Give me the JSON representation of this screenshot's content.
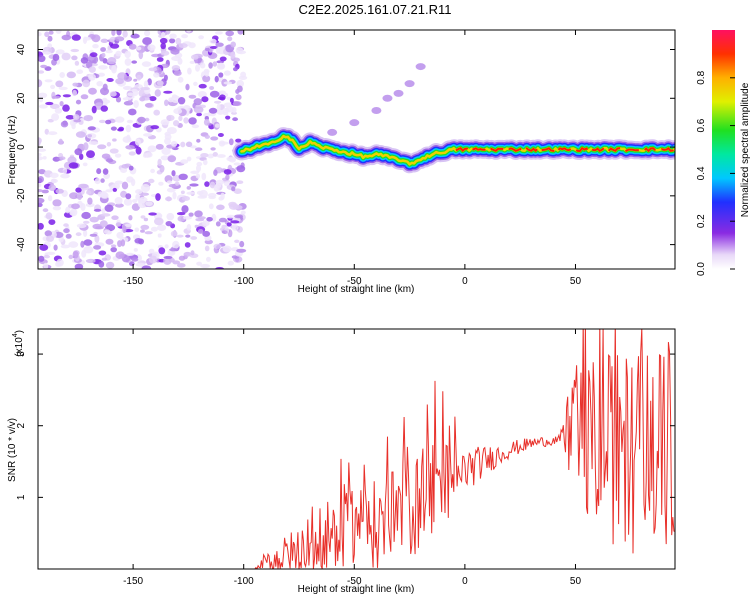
{
  "title": "C2E2.2025.161.07.21.R11",
  "colors": {
    "series_line": "#e8302a",
    "low_amplitude": "#7a1ee8",
    "axis": "#000000"
  },
  "chart_data": [
    {
      "type": "heatmap",
      "id": "spectrogram",
      "xlabel": "Height of straight line (km)",
      "ylabel": "Frequency (Hz)",
      "xlim": [
        -193,
        95
      ],
      "ylim": [
        -50,
        48
      ],
      "xticks": [
        -150,
        -100,
        -50,
        0,
        50
      ],
      "yticks": [
        -40,
        -20,
        0,
        20,
        40
      ],
      "ridge": [
        {
          "x": -101,
          "y": -2
        },
        {
          "x": -98,
          "y": -1
        },
        {
          "x": -95,
          "y": 0
        },
        {
          "x": -90,
          "y": 1
        },
        {
          "x": -85,
          "y": 2
        },
        {
          "x": -82,
          "y": 5
        },
        {
          "x": -78,
          "y": 3
        },
        {
          "x": -75,
          "y": -1
        },
        {
          "x": -70,
          "y": 2
        },
        {
          "x": -65,
          "y": 0
        },
        {
          "x": -60,
          "y": -1
        },
        {
          "x": -55,
          "y": -2
        },
        {
          "x": -50,
          "y": -3
        },
        {
          "x": -45,
          "y": -4
        },
        {
          "x": -40,
          "y": -3
        },
        {
          "x": -35,
          "y": -4
        },
        {
          "x": -30,
          "y": -5
        },
        {
          "x": -25,
          "y": -7
        },
        {
          "x": -20,
          "y": -5
        },
        {
          "x": -15,
          "y": -3
        },
        {
          "x": -10,
          "y": -2
        },
        {
          "x": -5,
          "y": -1
        },
        {
          "x": 0,
          "y": -1
        },
        {
          "x": 10,
          "y": -1
        },
        {
          "x": 30,
          "y": -1
        },
        {
          "x": 50,
          "y": -1
        },
        {
          "x": 70,
          "y": -1
        },
        {
          "x": 80,
          "y": -1
        },
        {
          "x": 95,
          "y": -1
        }
      ],
      "faint_harmonic": [
        {
          "x": -60,
          "y": 6
        },
        {
          "x": -50,
          "y": 10
        },
        {
          "x": -40,
          "y": 15
        },
        {
          "x": -35,
          "y": 20
        },
        {
          "x": -30,
          "y": 22
        },
        {
          "x": -25,
          "y": 26
        },
        {
          "x": -20,
          "y": 33
        }
      ],
      "noise_region_x": [
        -193,
        -100
      ],
      "colorbar": {
        "label": "Normalized spectral amplitude",
        "ticks": [
          "0.0",
          "0.2",
          "0.4",
          "0.6",
          "0.8"
        ],
        "range": [
          0,
          1
        ]
      }
    },
    {
      "type": "line",
      "id": "snr",
      "xlabel": "Height of straight line (km)",
      "ylabel": "SNR (10 * v/v)",
      "multiplier": "(x10",
      "multiplier_exp": "4",
      "multiplier_close": ")",
      "xlim": [
        -193,
        95
      ],
      "ylim": [
        0,
        3.35
      ],
      "xticks": [
        -150,
        -100,
        -50,
        0,
        50
      ],
      "yticks": [
        1,
        2,
        3
      ],
      "envelope": [
        {
          "x": -193,
          "base": 0.0,
          "spread": 0.0
        },
        {
          "x": -95,
          "base": 0.0,
          "spread": 0.0
        },
        {
          "x": -92,
          "base": 0.05,
          "spread": 0.15
        },
        {
          "x": -85,
          "base": 0.1,
          "spread": 0.3
        },
        {
          "x": -75,
          "base": 0.2,
          "spread": 0.5
        },
        {
          "x": -60,
          "base": 0.35,
          "spread": 0.7
        },
        {
          "x": -40,
          "base": 0.55,
          "spread": 0.8
        },
        {
          "x": -20,
          "base": 0.85,
          "spread": 0.9
        },
        {
          "x": -15,
          "base": 1.1,
          "spread": 1.0
        },
        {
          "x": -5,
          "base": 1.2,
          "spread": 0.6
        },
        {
          "x": 0,
          "base": 1.35,
          "spread": 0.4
        },
        {
          "x": 10,
          "base": 1.5,
          "spread": 0.25
        },
        {
          "x": 20,
          "base": 1.65,
          "spread": 0.15
        },
        {
          "x": 30,
          "base": 1.75,
          "spread": 0.1
        },
        {
          "x": 43,
          "base": 1.8,
          "spread": 0.08
        },
        {
          "x": 50,
          "base": 1.7,
          "spread": 1.3
        },
        {
          "x": 60,
          "base": 1.6,
          "spread": 1.6
        },
        {
          "x": 75,
          "base": 1.5,
          "spread": 1.8
        },
        {
          "x": 95,
          "base": 1.5,
          "spread": 1.8
        }
      ]
    }
  ]
}
